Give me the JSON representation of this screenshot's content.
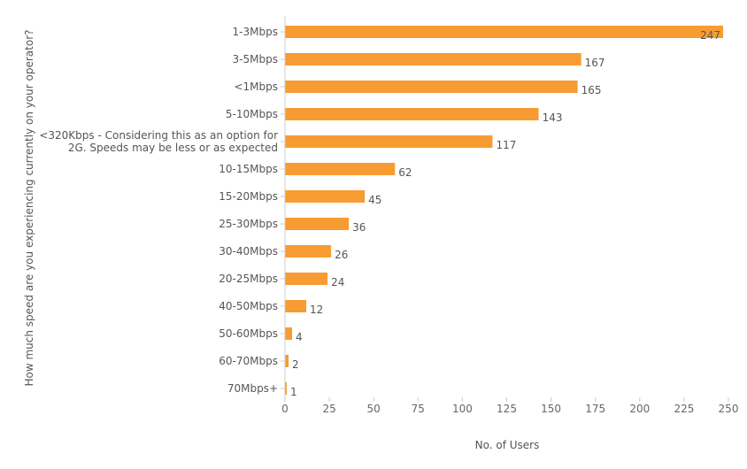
{
  "chart_data": {
    "type": "bar",
    "orientation": "horizontal",
    "categories": [
      "1-3Mbps",
      "3-5Mbps",
      "<1Mbps",
      "5-10Mbps",
      "<320Kbps - Considering this as an option for 2G. Speeds may be less or as expected",
      "10-15Mbps",
      "15-20Mbps",
      "25-30Mbps",
      "30-40Mbps",
      "20-25Mbps",
      "40-50Mbps",
      "50-60Mbps",
      "60-70Mbps",
      "70Mbps+"
    ],
    "category_lines": [
      [
        "1-3Mbps"
      ],
      [
        "3-5Mbps"
      ],
      [
        "<1Mbps"
      ],
      [
        "5-10Mbps"
      ],
      [
        "<320Kbps - Considering this as an option for",
        "2G. Speeds may be less or as expected"
      ],
      [
        "10-15Mbps"
      ],
      [
        "15-20Mbps"
      ],
      [
        "25-30Mbps"
      ],
      [
        "30-40Mbps"
      ],
      [
        "20-25Mbps"
      ],
      [
        "40-50Mbps"
      ],
      [
        "50-60Mbps"
      ],
      [
        "60-70Mbps"
      ],
      [
        "70Mbps+"
      ]
    ],
    "values": [
      247,
      167,
      165,
      143,
      117,
      62,
      45,
      36,
      26,
      24,
      12,
      4,
      2,
      1
    ],
    "xlabel": "No. of Users",
    "ylabel": "How much speed are you experiencing currently on your operator?",
    "xlim": [
      0,
      250
    ],
    "xticks": [
      0,
      25,
      50,
      75,
      100,
      125,
      150,
      175,
      200,
      225,
      250
    ],
    "grid": false,
    "bar_color": "#f79c32"
  }
}
